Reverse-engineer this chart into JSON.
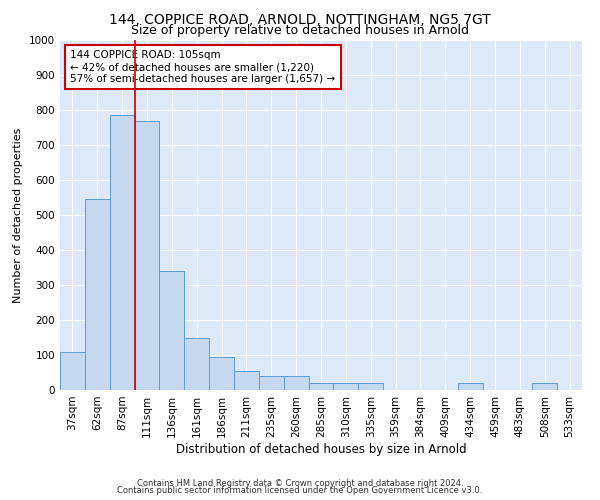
{
  "title1": "144, COPPICE ROAD, ARNOLD, NOTTINGHAM, NG5 7GT",
  "title2": "Size of property relative to detached houses in Arnold",
  "xlabel": "Distribution of detached houses by size in Arnold",
  "ylabel": "Number of detached properties",
  "footer1": "Contains HM Land Registry data © Crown copyright and database right 2024.",
  "footer2": "Contains public sector information licensed under the Open Government Licence v3.0.",
  "categories": [
    "37sqm",
    "62sqm",
    "87sqm",
    "111sqm",
    "136sqm",
    "161sqm",
    "186sqm",
    "211sqm",
    "235sqm",
    "260sqm",
    "285sqm",
    "310sqm",
    "335sqm",
    "359sqm",
    "384sqm",
    "409sqm",
    "434sqm",
    "459sqm",
    "483sqm",
    "508sqm",
    "533sqm"
  ],
  "values": [
    110,
    545,
    785,
    770,
    340,
    150,
    95,
    55,
    40,
    40,
    20,
    20,
    20,
    0,
    0,
    0,
    20,
    0,
    0,
    20,
    0
  ],
  "bar_color": "#c5d8f0",
  "bar_edge_color": "#5b9bd5",
  "vline_color": "#cc0000",
  "annotation_title": "144 COPPICE ROAD: 105sqm",
  "annotation_line1": "← 42% of detached houses are smaller (1,220)",
  "annotation_line2": "57% of semi-detached houses are larger (1,657) →",
  "annotation_box_edgecolor": "#cc0000",
  "ylim": [
    0,
    1000
  ],
  "yticks": [
    0,
    100,
    200,
    300,
    400,
    500,
    600,
    700,
    800,
    900,
    1000
  ],
  "background_color": "#dde8f8",
  "grid_color": "white",
  "title1_fontsize": 10,
  "title2_fontsize": 9,
  "xlabel_fontsize": 8.5,
  "ylabel_fontsize": 8,
  "tick_fontsize": 7.5,
  "annotation_fontsize": 7.5,
  "footer_fontsize": 6
}
